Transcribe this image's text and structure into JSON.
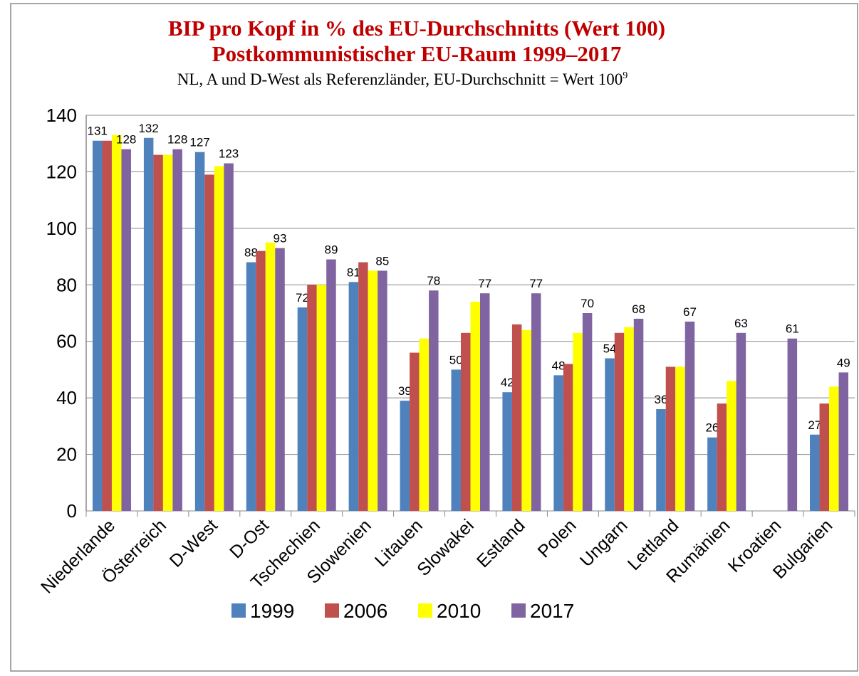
{
  "chart_data": {
    "type": "bar",
    "title": [
      "BIP pro Kopf in % des EU-Durchschnitts (Wert 100)",
      "Postkommunistischer EU-Raum 1999–2017"
    ],
    "subtitle": "NL, A und D-West als Referenzländer, EU-Durchschnitt = Wert 100",
    "subtitle_footnote": "9",
    "categories": [
      "Niederlande",
      "Österreich",
      "D-West",
      "D-Ost",
      "Tschechien",
      "Slowenien",
      "Litauen",
      "Slowakei",
      "Estland",
      "Polen",
      "Ungarn",
      "Lettland",
      "Rumänien",
      "Kroatien",
      "Bulgarien"
    ],
    "series": [
      {
        "name": "1999",
        "color": "#4f81bd",
        "data_labels": true,
        "values": [
          131,
          132,
          127,
          88,
          72,
          81,
          39,
          50,
          42,
          48,
          54,
          36,
          26,
          null,
          27
        ]
      },
      {
        "name": "2006",
        "color": "#c0504d",
        "data_labels": false,
        "values": [
          131,
          126,
          119,
          92,
          80,
          88,
          56,
          63,
          66,
          52,
          63,
          51,
          38,
          null,
          38
        ]
      },
      {
        "name": "2010",
        "color": "#ffff00",
        "data_labels": false,
        "values": [
          133,
          126,
          122,
          95,
          80,
          85,
          61,
          74,
          64,
          63,
          65,
          51,
          46,
          null,
          44
        ]
      },
      {
        "name": "2017",
        "color": "#8064a2",
        "data_labels": true,
        "values": [
          128,
          128,
          123,
          93,
          89,
          85,
          78,
          77,
          77,
          70,
          68,
          67,
          63,
          61,
          49
        ]
      }
    ],
    "ylim": [
      0,
      140
    ],
    "yticks": [
      0,
      20,
      40,
      60,
      80,
      100,
      120,
      140
    ],
    "grid": true,
    "legend": "bottom"
  }
}
